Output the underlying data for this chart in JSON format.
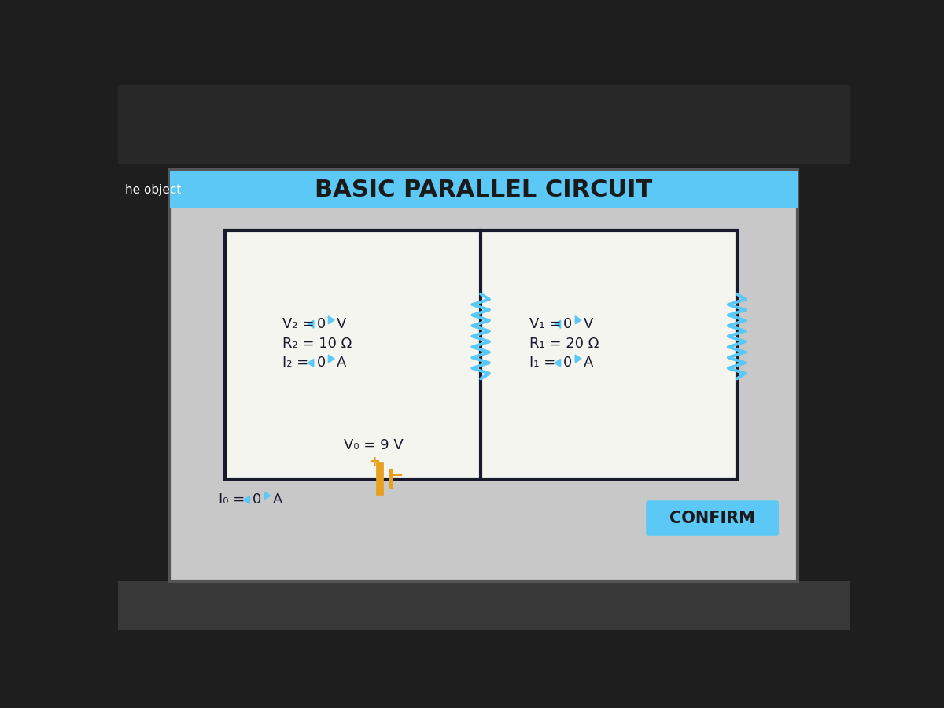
{
  "title": "BASIC PARALLEL CIRCUIT",
  "title_bg_color": "#5bc8f5",
  "title_text_color": "#1a1a1a",
  "panel_bg_color": "#d8d8d8",
  "outer_bg_top": "#2a2a2a",
  "outer_bg_bot": "#4a4a4a",
  "circuit_bg_color": "#f0f0f0",
  "circuit_border_color": "#1a1a2e",
  "divider_color": "#1a1a2e",
  "battery_color": "#e8a020",
  "resistor_color": "#5bc8f5",
  "text_color": "#1a1a2e",
  "arrow_color": "#5bc8f5",
  "v2_label": "V₂ =",
  "v2_value": "0",
  "v2_unit": "V",
  "r2_label": "R₂ = 10 Ω",
  "i2_label": "I₂ =",
  "i2_value": "0",
  "i2_unit": "A",
  "v0_label": "V₀ = 9 V",
  "i0_label": "I₀ =",
  "i0_value": "0",
  "i0_unit": "A",
  "v1_label": "V₁ =",
  "v1_value": "0",
  "v1_unit": "V",
  "r1_label": "R₁ = 20 Ω",
  "i1_label": "I₁ =",
  "i1_value": "0",
  "i1_unit": "A",
  "confirm_text": "CONFIRM",
  "confirm_bg": "#5bc8f5",
  "confirm_text_color": "#1a1a1a",
  "he_object_text": "he object"
}
